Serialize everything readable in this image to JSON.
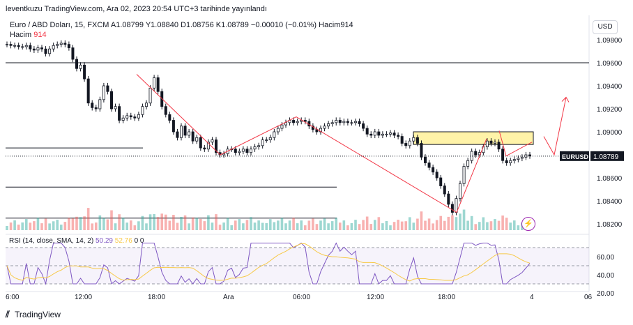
{
  "header": {
    "published": "leventkuzu TradingView.com, Ara 02, 2023 20:54 UTC+3 tarihinde yayınlandı",
    "symbol_line": "Euro / ABD Doları, 15, FXCM A1.08799 Y1.08840 D1.08756 K1.08789 −0.00010 (−0.01%) Hacim914",
    "volume_label": "Hacim",
    "volume_value": "914",
    "currency": "USD"
  },
  "rsi": {
    "label": "RSI (14, close, SMA, 14, 2)",
    "value": "50.29",
    "ma_value": "52.76",
    "bands": "0 0",
    "ticks": [
      "60.00",
      "40.00",
      "20.00"
    ]
  },
  "footer": {
    "brand": "TradingView"
  },
  "colors": {
    "up": "#26a69a",
    "down": "#ef5350",
    "rsi": "#7e57c2",
    "rsi_ma": "#f7c948",
    "zone": "#fff3a8"
  },
  "chart_data": {
    "type": "candlestick",
    "symbol": "EURUSD",
    "last_price": 1.08789,
    "price_axis_ticks": [
      "1.09800",
      "1.09600",
      "1.09400",
      "1.09200",
      "1.09000",
      "1.08800",
      "1.08600",
      "1.08400",
      "1.08200"
    ],
    "time_axis_ticks": [
      "6:00",
      "12:00",
      "18:00",
      "Ara",
      "06:00",
      "12:00",
      "18:00",
      "4",
      "06"
    ],
    "closes": [
      1.0976,
      1.0975,
      1.0975,
      1.0974,
      1.0974,
      1.0975,
      1.0972,
      1.0971,
      1.0973,
      1.0972,
      1.0968,
      1.0972,
      1.0975,
      1.0976,
      1.0977,
      1.0976,
      1.0973,
      1.0963,
      1.0955,
      1.0958,
      1.0946,
      1.0925,
      1.0921,
      1.092,
      1.0928,
      1.094,
      1.0935,
      1.092,
      1.0922,
      1.091,
      1.0912,
      1.0914,
      1.0913,
      1.0912,
      1.0915,
      1.0922,
      1.0925,
      1.0938,
      1.0947,
      1.0935,
      1.0922,
      1.0915,
      1.091,
      1.09,
      1.0895,
      1.0905,
      1.0897,
      1.09,
      1.0892,
      1.0895,
      1.0886,
      1.0885,
      1.0891,
      1.0893,
      1.0882,
      1.088,
      1.0881,
      1.0885,
      1.0885,
      1.0882,
      1.0883,
      1.0885,
      1.0882,
      1.0885,
      1.0887,
      1.0888,
      1.0893,
      1.0893,
      1.0895,
      1.09,
      1.0903,
      1.0906,
      1.0908,
      1.091,
      1.0908,
      1.0909,
      1.091,
      1.0909,
      1.0905,
      1.0902,
      1.09,
      1.0903,
      1.0905,
      1.0907,
      1.0908,
      1.091,
      1.0908,
      1.0909,
      1.0908,
      1.0908,
      1.0909,
      1.0907,
      1.0903,
      1.0898,
      1.0897,
      1.09,
      1.0897,
      1.0898,
      1.0898,
      1.0899,
      1.0897,
      1.0896,
      1.089,
      1.0888,
      1.0892,
      1.0895,
      1.089,
      1.0878,
      1.0873,
      1.0869,
      1.0865,
      1.086,
      1.0853,
      1.0846,
      1.0837,
      1.083,
      1.0842,
      1.0855,
      1.087,
      1.0875,
      1.0883,
      1.088,
      1.0882,
      1.0887,
      1.0892,
      1.089,
      1.0891,
      1.0885,
      1.0875,
      1.0873,
      1.0875,
      1.0876,
      1.0877,
      1.0878,
      1.088,
      1.0879
    ],
    "volume_label": "Hacim",
    "annotations": {
      "levels": [
        1.096,
        1.0886,
        1.0852,
        1.0825
      ],
      "zone": [
        1.0889,
        1.09
      ],
      "pattern": [
        [
          1.095,
          "18:00"
        ],
        [
          1.088,
          "Ara"
        ],
        [
          1.0913,
          "06:00"
        ],
        [
          1.083,
          "18:00"
        ],
        [
          1.0894,
          "evening"
        ]
      ]
    }
  }
}
